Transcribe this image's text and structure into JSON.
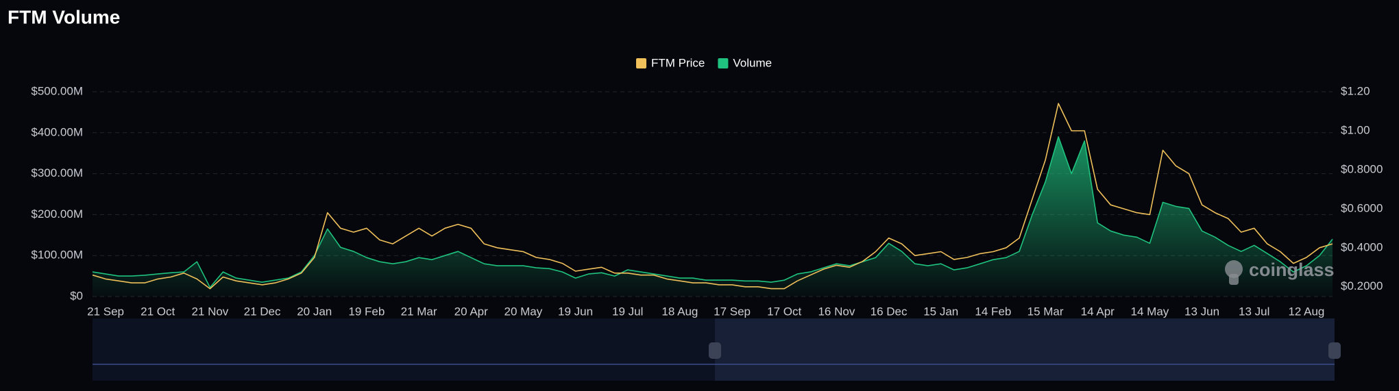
{
  "chart_data": {
    "type": "line",
    "title": "FTM Volume",
    "watermark": "coinglass",
    "legend": "top",
    "grid": true,
    "categories": [
      null,
      "21 Sep",
      null,
      null,
      null,
      "21 Oct",
      null,
      null,
      null,
      "21 Nov",
      null,
      null,
      null,
      "21 Dec",
      null,
      null,
      null,
      "20 Jan",
      null,
      null,
      null,
      "19 Feb",
      null,
      null,
      null,
      "21 Mar",
      null,
      null,
      null,
      "20 Apr",
      null,
      null,
      null,
      "20 May",
      null,
      null,
      null,
      "19 Jun",
      null,
      null,
      null,
      "19 Jul",
      null,
      null,
      null,
      "18 Aug",
      null,
      null,
      null,
      "17 Sep",
      null,
      null,
      null,
      "17 Oct",
      null,
      null,
      null,
      "16 Nov",
      null,
      null,
      null,
      "16 Dec",
      null,
      null,
      null,
      "15 Jan",
      null,
      null,
      null,
      "14 Feb",
      null,
      null,
      null,
      "15 Mar",
      null,
      null,
      null,
      "14 Apr",
      null,
      null,
      null,
      "14 May",
      null,
      null,
      null,
      "13 Jun",
      null,
      null,
      null,
      "13 Jul",
      null,
      null,
      null,
      "12 Aug",
      null,
      null
    ],
    "series": [
      {
        "name": "FTM Price",
        "color": "#f0c05a",
        "axis": "y2",
        "values": [
          0.26,
          0.24,
          0.23,
          0.22,
          0.22,
          0.24,
          0.25,
          0.27,
          0.24,
          0.19,
          0.25,
          0.23,
          0.22,
          0.21,
          0.22,
          0.24,
          0.27,
          0.35,
          0.58,
          0.5,
          0.48,
          0.5,
          0.44,
          0.42,
          0.46,
          0.5,
          0.46,
          0.5,
          0.52,
          0.5,
          0.42,
          0.4,
          0.39,
          0.38,
          0.35,
          0.34,
          0.32,
          0.28,
          0.29,
          0.3,
          0.27,
          0.27,
          0.26,
          0.26,
          0.24,
          0.23,
          0.22,
          0.22,
          0.21,
          0.21,
          0.2,
          0.2,
          0.19,
          0.19,
          0.23,
          0.26,
          0.29,
          0.31,
          0.3,
          0.33,
          0.38,
          0.45,
          0.42,
          0.36,
          0.37,
          0.38,
          0.34,
          0.35,
          0.37,
          0.38,
          0.4,
          0.45,
          0.65,
          0.85,
          1.14,
          1.0,
          1.0,
          0.7,
          0.62,
          0.6,
          0.58,
          0.57,
          0.9,
          0.82,
          0.78,
          0.62,
          0.58,
          0.55,
          0.48,
          0.5,
          0.42,
          0.38,
          0.32,
          0.35,
          0.4,
          0.42
        ]
      },
      {
        "name": "Volume",
        "color": "#1fc27e",
        "type": "area",
        "values": [
          60000000,
          55000000,
          50000000,
          50000000,
          52000000,
          55000000,
          58000000,
          60000000,
          85000000,
          22000000,
          60000000,
          45000000,
          40000000,
          35000000,
          40000000,
          45000000,
          60000000,
          100000000,
          165000000,
          120000000,
          110000000,
          95000000,
          85000000,
          80000000,
          85000000,
          95000000,
          90000000,
          100000000,
          110000000,
          95000000,
          80000000,
          75000000,
          75000000,
          75000000,
          70000000,
          68000000,
          60000000,
          45000000,
          55000000,
          58000000,
          50000000,
          65000000,
          60000000,
          55000000,
          50000000,
          45000000,
          45000000,
          40000000,
          40000000,
          40000000,
          38000000,
          38000000,
          35000000,
          40000000,
          55000000,
          60000000,
          70000000,
          80000000,
          75000000,
          85000000,
          95000000,
          130000000,
          110000000,
          80000000,
          75000000,
          80000000,
          65000000,
          70000000,
          80000000,
          90000000,
          95000000,
          110000000,
          200000000,
          280000000,
          390000000,
          300000000,
          380000000,
          180000000,
          160000000,
          150000000,
          145000000,
          130000000,
          230000000,
          220000000,
          215000000,
          160000000,
          145000000,
          125000000,
          110000000,
          125000000,
          105000000,
          85000000,
          60000000,
          75000000,
          100000000,
          140000000
        ]
      }
    ],
    "ylim": [
      0,
      500000000
    ],
    "yticks": [
      {
        "value": 0,
        "label": "$0"
      },
      {
        "value": 100000000,
        "label": "$100.00M"
      },
      {
        "value": 200000000,
        "label": "$200.00M"
      },
      {
        "value": 300000000,
        "label": "$300.00M"
      },
      {
        "value": 400000000,
        "label": "$400.00M"
      },
      {
        "value": 500000000,
        "label": "$500.00M"
      }
    ],
    "y2lim": [
      0.15,
      1.2
    ],
    "y2ticks": [
      {
        "value": 0.2,
        "label": "$0.2000"
      },
      {
        "value": 0.4,
        "label": "$0.4000"
      },
      {
        "value": 0.6,
        "label": "$0.6000"
      },
      {
        "value": 0.8,
        "label": "$0.8000"
      },
      {
        "value": 1,
        "label": "$1.00"
      },
      {
        "value": 1.2,
        "label": "$1.20"
      }
    ]
  }
}
